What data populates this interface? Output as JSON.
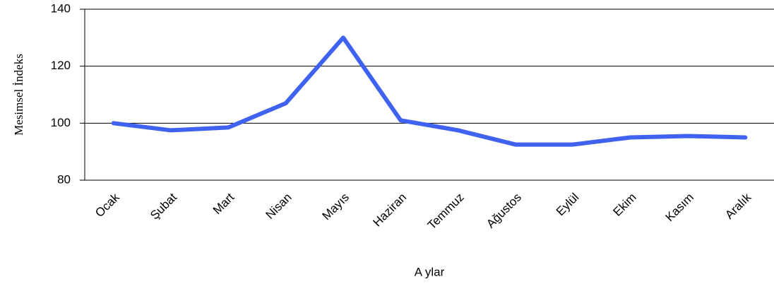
{
  "chart_data": {
    "type": "line",
    "categories": [
      "Ocak",
      "Şubat",
      "Mart",
      "Nisan",
      "Mayıs",
      "Haziran",
      "Temmuz",
      "Ağustos",
      "Eylül",
      "Ekim",
      "Kasım",
      "Aralık"
    ],
    "series": [
      {
        "color": "#3f62f0",
        "values": [
          100,
          97.5,
          98.5,
          107,
          130,
          101,
          97.5,
          92.5,
          92.5,
          95,
          95.5,
          95
        ]
      }
    ],
    "ylim": [
      80,
      140
    ],
    "yticks": [
      80,
      100,
      120,
      140
    ],
    "grid": true,
    "xlabel": "A ylar",
    "ylabel": "Mesimsel  İndeks"
  }
}
